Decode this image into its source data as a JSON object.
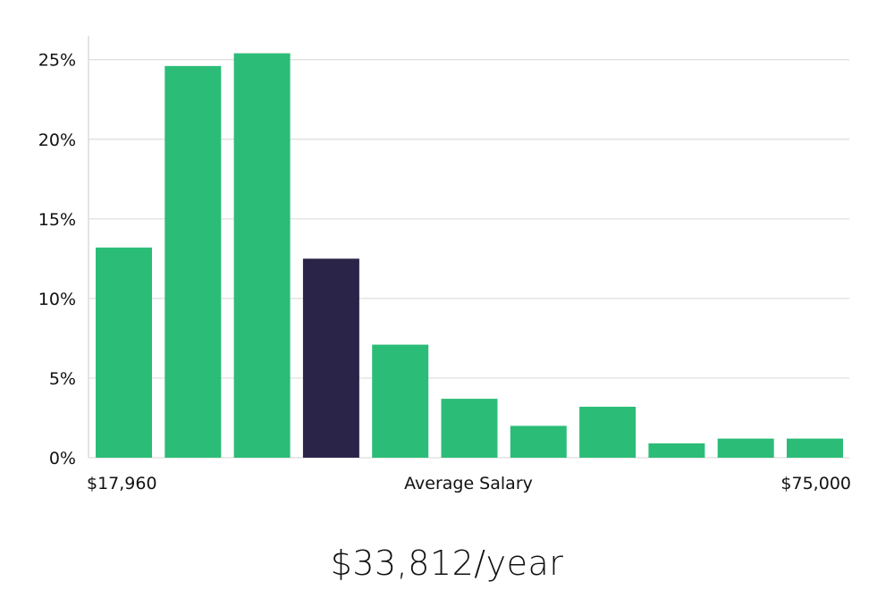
{
  "chart_data": {
    "type": "bar",
    "y_ticks": [
      "0%",
      "5%",
      "10%",
      "15%",
      "20%",
      "25%"
    ],
    "ylim": [
      0,
      26.5
    ],
    "values": [
      13.2,
      24.6,
      25.4,
      12.5,
      7.1,
      3.7,
      2.0,
      3.2,
      0.9,
      1.2,
      1.2
    ],
    "highlight_index": 3,
    "bar_color": "#2bbd77",
    "highlight_color": "#2a2548",
    "grid": true,
    "x_labels": {
      "left": "$17,960",
      "center": "Average Salary",
      "right": "$75,000"
    }
  },
  "salary_text": "$33,812/year"
}
